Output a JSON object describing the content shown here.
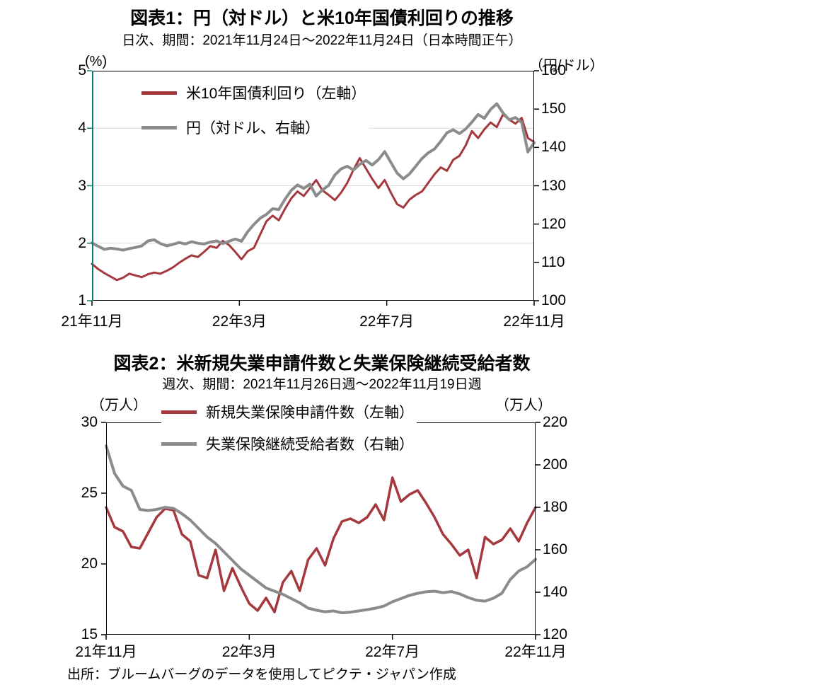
{
  "colors": {
    "red": "#A5383D",
    "gray": "#8B8B8B",
    "teal_axis": "#0F7E7B",
    "grid": "#D9D9D9",
    "frame": "#000000"
  },
  "footer": "出所：ブルームバーグのデータを使用してピクテ・ジャパン作成",
  "chart_data": [
    {
      "type": "line",
      "title": "図表1：円（対ドル）と米10年国債利回りの推移",
      "subtitle": "日次、期間：2021年11月24日～2022年11月24日（日本時間正午）",
      "left_axis": {
        "unit": "(%)",
        "min": 1,
        "max": 5,
        "ticks": [
          5,
          4,
          3,
          2,
          1
        ]
      },
      "right_axis": {
        "unit": "（円/ドル）",
        "min": 100,
        "max": 160,
        "ticks": [
          160,
          150,
          140,
          130,
          120,
          110,
          100
        ]
      },
      "x_labels": [
        "21年11月",
        "22年3月",
        "22年7月",
        "22年11月"
      ],
      "gridlines_left_values": [
        2,
        3,
        4
      ],
      "legend_position": "top-left-inside",
      "series": [
        {
          "name": "米10年国債利回り（左軸）",
          "axis": "left",
          "color": "#A5383D",
          "width": 3,
          "values": [
            1.64,
            1.55,
            1.48,
            1.42,
            1.36,
            1.4,
            1.47,
            1.44,
            1.41,
            1.46,
            1.49,
            1.47,
            1.52,
            1.58,
            1.66,
            1.73,
            1.79,
            1.76,
            1.85,
            1.95,
            1.92,
            2.04,
            1.97,
            1.85,
            1.72,
            1.86,
            1.92,
            2.15,
            2.38,
            2.48,
            2.4,
            2.6,
            2.78,
            2.9,
            2.82,
            2.96,
            3.1,
            2.92,
            2.84,
            2.75,
            2.88,
            3.05,
            3.28,
            3.48,
            3.3,
            3.12,
            2.96,
            3.1,
            2.88,
            2.68,
            2.62,
            2.76,
            2.84,
            2.9,
            3.05,
            3.2,
            3.32,
            3.26,
            3.45,
            3.52,
            3.7,
            3.95,
            3.83,
            3.98,
            4.1,
            4.02,
            4.24,
            4.15,
            4.08,
            4.18,
            3.83,
            3.76
          ]
        },
        {
          "name": "円（対ドル、右軸）",
          "axis": "right",
          "color": "#8B8B8B",
          "width": 4,
          "values": [
            115.1,
            114.2,
            113.4,
            113.7,
            113.5,
            113.2,
            113.6,
            113.9,
            114.3,
            115.6,
            115.9,
            114.9,
            114.3,
            114.7,
            115.2,
            114.8,
            115.4,
            115.0,
            114.8,
            115.3,
            115.6,
            114.9,
            115.5,
            116.1,
            115.5,
            118.0,
            119.9,
            121.5,
            122.5,
            124.0,
            123.8,
            126.5,
            128.8,
            130.2,
            129.3,
            130.4,
            127.3,
            128.9,
            130.1,
            132.8,
            134.4,
            135.1,
            134.1,
            135.6,
            136.6,
            135.4,
            136.8,
            138.9,
            136.1,
            133.3,
            131.8,
            133.1,
            135.1,
            137.1,
            138.6,
            139.6,
            141.6,
            143.8,
            144.6,
            143.6,
            144.8,
            146.6,
            148.6,
            147.6,
            149.9,
            151.4,
            149.0,
            147.2,
            147.8,
            146.5,
            138.8,
            141.2
          ]
        }
      ]
    },
    {
      "type": "line",
      "title": "図表2：米新規失業申請件数と失業保険継続受給者数",
      "subtitle": "週次、期間：2021年11月26日週～2022年11月19日週",
      "left_axis": {
        "unit": "（万人）",
        "min": 15,
        "max": 30,
        "ticks": [
          30,
          25,
          20,
          15
        ]
      },
      "right_axis": {
        "unit": "（万人）",
        "min": 120,
        "max": 220,
        "ticks": [
          220,
          200,
          180,
          160,
          140,
          120
        ]
      },
      "x_labels": [
        "21年11月",
        "22年3月",
        "22年7月",
        "22年11月"
      ],
      "gridlines_left_values": [],
      "legend_position": "top-outside",
      "series": [
        {
          "name": "新規失業保険申請件数（左軸）",
          "axis": "left",
          "color": "#A5383D",
          "width": 3.5,
          "values": [
            24.0,
            22.6,
            22.3,
            21.2,
            21.1,
            22.2,
            23.3,
            23.9,
            23.8,
            22.1,
            21.6,
            19.2,
            19.0,
            21.0,
            18.1,
            19.7,
            18.4,
            17.2,
            16.7,
            17.6,
            16.6,
            18.7,
            19.5,
            18.1,
            20.3,
            21.1,
            19.9,
            21.8,
            23.0,
            23.2,
            22.9,
            23.3,
            24.2,
            23.1,
            26.1,
            24.4,
            24.9,
            25.2,
            24.3,
            23.3,
            22.1,
            21.4,
            20.6,
            21.0,
            19.0,
            21.9,
            21.4,
            21.7,
            22.5,
            21.6,
            22.9,
            24.0
          ]
        },
        {
          "name": "失業保険継続受給者数（右軸）",
          "axis": "right",
          "color": "#8B8B8B",
          "width": 4,
          "values": [
            209,
            196,
            190,
            188,
            179,
            178.5,
            179,
            180,
            179.5,
            177,
            174,
            170,
            166,
            163,
            159,
            155,
            151,
            148,
            145,
            142,
            140.5,
            139,
            137,
            135,
            132.5,
            131.5,
            130.8,
            131.2,
            130.3,
            130.6,
            131.2,
            131.8,
            132.5,
            133.5,
            135.5,
            137,
            138.5,
            139.5,
            140.2,
            140.5,
            139.8,
            140.3,
            139.2,
            137.5,
            136.2,
            135.8,
            137.2,
            139.5,
            146,
            150,
            152,
            155.5
          ]
        }
      ]
    }
  ]
}
